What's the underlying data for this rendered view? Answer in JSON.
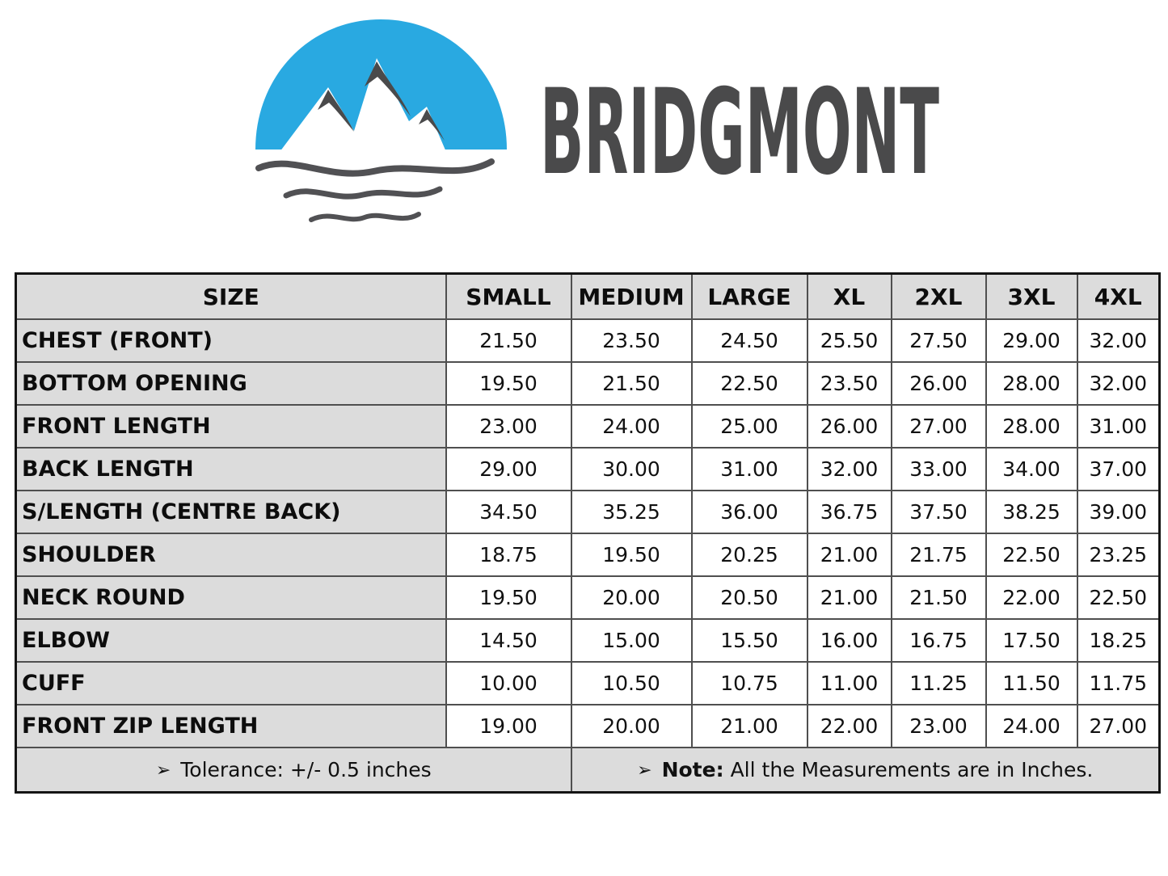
{
  "brand": {
    "name": "BRIDGMONT",
    "logo": {
      "icon": "mountain-sun-waves-logo",
      "blue": "#29A9E1",
      "dark": "#4A4A4B"
    }
  },
  "table": {
    "headers": [
      "SIZE",
      "SMALL",
      "MEDIUM",
      "LARGE",
      "XL",
      "2XL",
      "3XL",
      "4XL"
    ],
    "rows": [
      {
        "label": "CHEST (FRONT)",
        "values": [
          "21.50",
          "23.50",
          "24.50",
          "25.50",
          "27.50",
          "29.00",
          "32.00"
        ]
      },
      {
        "label": "BOTTOM OPENING",
        "values": [
          "19.50",
          "21.50",
          "22.50",
          "23.50",
          "26.00",
          "28.00",
          "32.00"
        ]
      },
      {
        "label": "FRONT LENGTH",
        "values": [
          "23.00",
          "24.00",
          "25.00",
          "26.00",
          "27.00",
          "28.00",
          "31.00"
        ]
      },
      {
        "label": "BACK LENGTH",
        "values": [
          "29.00",
          "30.00",
          "31.00",
          "32.00",
          "33.00",
          "34.00",
          "37.00"
        ]
      },
      {
        "label": "S/LENGTH (CENTRE BACK)",
        "values": [
          "34.50",
          "35.25",
          "36.00",
          "36.75",
          "37.50",
          "38.25",
          "39.00"
        ]
      },
      {
        "label": "SHOULDER",
        "values": [
          "18.75",
          "19.50",
          "20.25",
          "21.00",
          "21.75",
          "22.50",
          "23.25"
        ]
      },
      {
        "label": "NECK ROUND",
        "values": [
          "19.50",
          "20.00",
          "20.50",
          "21.00",
          "21.50",
          "22.00",
          "22.50"
        ]
      },
      {
        "label": "ELBOW",
        "values": [
          "14.50",
          "15.00",
          "15.50",
          "16.00",
          "16.75",
          "17.50",
          "18.25"
        ]
      },
      {
        "label": "CUFF",
        "values": [
          "10.00",
          "10.50",
          "10.75",
          "11.00",
          "11.25",
          "11.50",
          "11.75"
        ]
      },
      {
        "label": "FRONT ZIP LENGTH",
        "values": [
          "19.00",
          "20.00",
          "21.00",
          "22.00",
          "23.00",
          "24.00",
          "27.00"
        ]
      }
    ],
    "footer": {
      "bullet": "➢",
      "tolerance_text": "Tolerance:  +/- 0.5 inches",
      "note_label": "Note:",
      "note_text": "All the Measurements are in Inches."
    },
    "colors": {
      "header_bg": "#dcdcdc",
      "grid_line": "#4f4f4f",
      "outer_border": "#141414",
      "value_bg": "#ffffff"
    }
  }
}
